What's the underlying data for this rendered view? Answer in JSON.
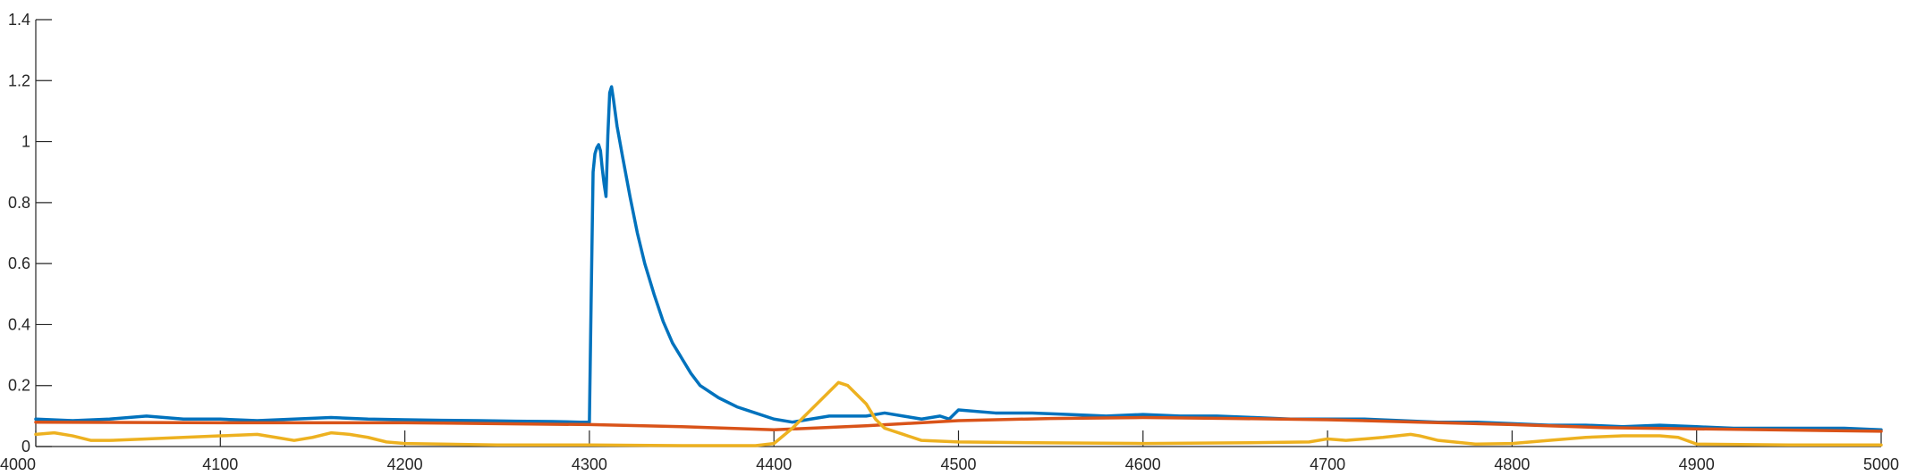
{
  "chart_data": {
    "type": "line",
    "title": "",
    "xlabel": "",
    "ylabel": "",
    "xlim": [
      4000,
      5000
    ],
    "ylim": [
      0,
      1.4
    ],
    "x_ticks": [
      4000,
      4100,
      4200,
      4300,
      4400,
      4500,
      4600,
      4700,
      4800,
      4900,
      5000
    ],
    "y_ticks": [
      0,
      0.2,
      0.4,
      0.6,
      0.8,
      1,
      1.2,
      1.4
    ],
    "x_tick_labels": [
      "4000",
      "4100",
      "4200",
      "4300",
      "4400",
      "4500",
      "4600",
      "4700",
      "4800",
      "4900",
      "5000"
    ],
    "y_tick_labels": [
      "0",
      "0.2",
      "0.4",
      "0.6",
      "0.8",
      "1",
      "1.2",
      "1.4"
    ],
    "grid": false,
    "legend": "none",
    "series": [
      {
        "color": "#0072BD",
        "points": [
          [
            4000,
            0.09
          ],
          [
            4020,
            0.085
          ],
          [
            4040,
            0.09
          ],
          [
            4060,
            0.1
          ],
          [
            4080,
            0.09
          ],
          [
            4100,
            0.09
          ],
          [
            4120,
            0.085
          ],
          [
            4140,
            0.09
          ],
          [
            4160,
            0.095
          ],
          [
            4180,
            0.09
          ],
          [
            4200,
            0.088
          ],
          [
            4220,
            0.086
          ],
          [
            4240,
            0.085
          ],
          [
            4260,
            0.083
          ],
          [
            4280,
            0.082
          ],
          [
            4295,
            0.08
          ],
          [
            4300,
            0.08
          ],
          [
            4301,
            0.5
          ],
          [
            4302,
            0.9
          ],
          [
            4303,
            0.96
          ],
          [
            4304,
            0.98
          ],
          [
            4305,
            0.99
          ],
          [
            4306,
            0.97
          ],
          [
            4307,
            0.91
          ],
          [
            4308,
            0.86
          ],
          [
            4309,
            0.82
          ],
          [
            4310,
            1.02
          ],
          [
            4311,
            1.16
          ],
          [
            4312,
            1.18
          ],
          [
            4313,
            1.14
          ],
          [
            4315,
            1.05
          ],
          [
            4318,
            0.95
          ],
          [
            4322,
            0.82
          ],
          [
            4326,
            0.7
          ],
          [
            4330,
            0.6
          ],
          [
            4335,
            0.5
          ],
          [
            4340,
            0.41
          ],
          [
            4345,
            0.34
          ],
          [
            4350,
            0.29
          ],
          [
            4355,
            0.24
          ],
          [
            4360,
            0.2
          ],
          [
            4370,
            0.16
          ],
          [
            4380,
            0.13
          ],
          [
            4390,
            0.11
          ],
          [
            4400,
            0.09
          ],
          [
            4410,
            0.08
          ],
          [
            4420,
            0.09
          ],
          [
            4430,
            0.1
          ],
          [
            4440,
            0.1
          ],
          [
            4450,
            0.1
          ],
          [
            4460,
            0.11
          ],
          [
            4470,
            0.1
          ],
          [
            4480,
            0.09
          ],
          [
            4490,
            0.1
          ],
          [
            4495,
            0.09
          ],
          [
            4500,
            0.12
          ],
          [
            4520,
            0.11
          ],
          [
            4540,
            0.11
          ],
          [
            4560,
            0.105
          ],
          [
            4580,
            0.1
          ],
          [
            4600,
            0.105
          ],
          [
            4620,
            0.1
          ],
          [
            4640,
            0.1
          ],
          [
            4660,
            0.095
          ],
          [
            4680,
            0.09
          ],
          [
            4700,
            0.09
          ],
          [
            4720,
            0.09
          ],
          [
            4740,
            0.085
          ],
          [
            4760,
            0.08
          ],
          [
            4780,
            0.08
          ],
          [
            4800,
            0.075
          ],
          [
            4820,
            0.07
          ],
          [
            4840,
            0.07
          ],
          [
            4860,
            0.065
          ],
          [
            4880,
            0.07
          ],
          [
            4900,
            0.065
          ],
          [
            4920,
            0.06
          ],
          [
            4940,
            0.06
          ],
          [
            4960,
            0.06
          ],
          [
            4980,
            0.06
          ],
          [
            5000,
            0.055
          ]
        ]
      },
      {
        "color": "#D95319",
        "points": [
          [
            4000,
            0.08
          ],
          [
            4100,
            0.078
          ],
          [
            4200,
            0.078
          ],
          [
            4300,
            0.072
          ],
          [
            4350,
            0.065
          ],
          [
            4400,
            0.055
          ],
          [
            4450,
            0.068
          ],
          [
            4500,
            0.085
          ],
          [
            4550,
            0.092
          ],
          [
            4600,
            0.095
          ],
          [
            4650,
            0.092
          ],
          [
            4700,
            0.088
          ],
          [
            4750,
            0.08
          ],
          [
            4800,
            0.072
          ],
          [
            4850,
            0.062
          ],
          [
            4900,
            0.058
          ],
          [
            5000,
            0.05
          ]
        ]
      },
      {
        "color": "#EDB120",
        "points": [
          [
            4000,
            0.04
          ],
          [
            4010,
            0.045
          ],
          [
            4020,
            0.035
          ],
          [
            4030,
            0.02
          ],
          [
            4040,
            0.02
          ],
          [
            4060,
            0.025
          ],
          [
            4080,
            0.03
          ],
          [
            4100,
            0.035
          ],
          [
            4120,
            0.04
          ],
          [
            4130,
            0.03
          ],
          [
            4140,
            0.02
          ],
          [
            4150,
            0.03
          ],
          [
            4160,
            0.045
          ],
          [
            4170,
            0.04
          ],
          [
            4180,
            0.03
          ],
          [
            4190,
            0.015
          ],
          [
            4200,
            0.01
          ],
          [
            4250,
            0.005
          ],
          [
            4300,
            0.005
          ],
          [
            4350,
            0.003
          ],
          [
            4390,
            0.003
          ],
          [
            4400,
            0.01
          ],
          [
            4410,
            0.06
          ],
          [
            4420,
            0.12
          ],
          [
            4430,
            0.18
          ],
          [
            4435,
            0.21
          ],
          [
            4440,
            0.2
          ],
          [
            4450,
            0.14
          ],
          [
            4455,
            0.09
          ],
          [
            4460,
            0.06
          ],
          [
            4470,
            0.04
          ],
          [
            4480,
            0.02
          ],
          [
            4500,
            0.015
          ],
          [
            4550,
            0.012
          ],
          [
            4600,
            0.01
          ],
          [
            4650,
            0.012
          ],
          [
            4690,
            0.015
          ],
          [
            4700,
            0.025
          ],
          [
            4710,
            0.02
          ],
          [
            4730,
            0.03
          ],
          [
            4745,
            0.04
          ],
          [
            4750,
            0.035
          ],
          [
            4760,
            0.02
          ],
          [
            4780,
            0.008
          ],
          [
            4800,
            0.01
          ],
          [
            4820,
            0.02
          ],
          [
            4840,
            0.03
          ],
          [
            4860,
            0.035
          ],
          [
            4880,
            0.035
          ],
          [
            4890,
            0.03
          ],
          [
            4900,
            0.008
          ],
          [
            4950,
            0.005
          ],
          [
            5000,
            0.005
          ]
        ]
      }
    ]
  }
}
